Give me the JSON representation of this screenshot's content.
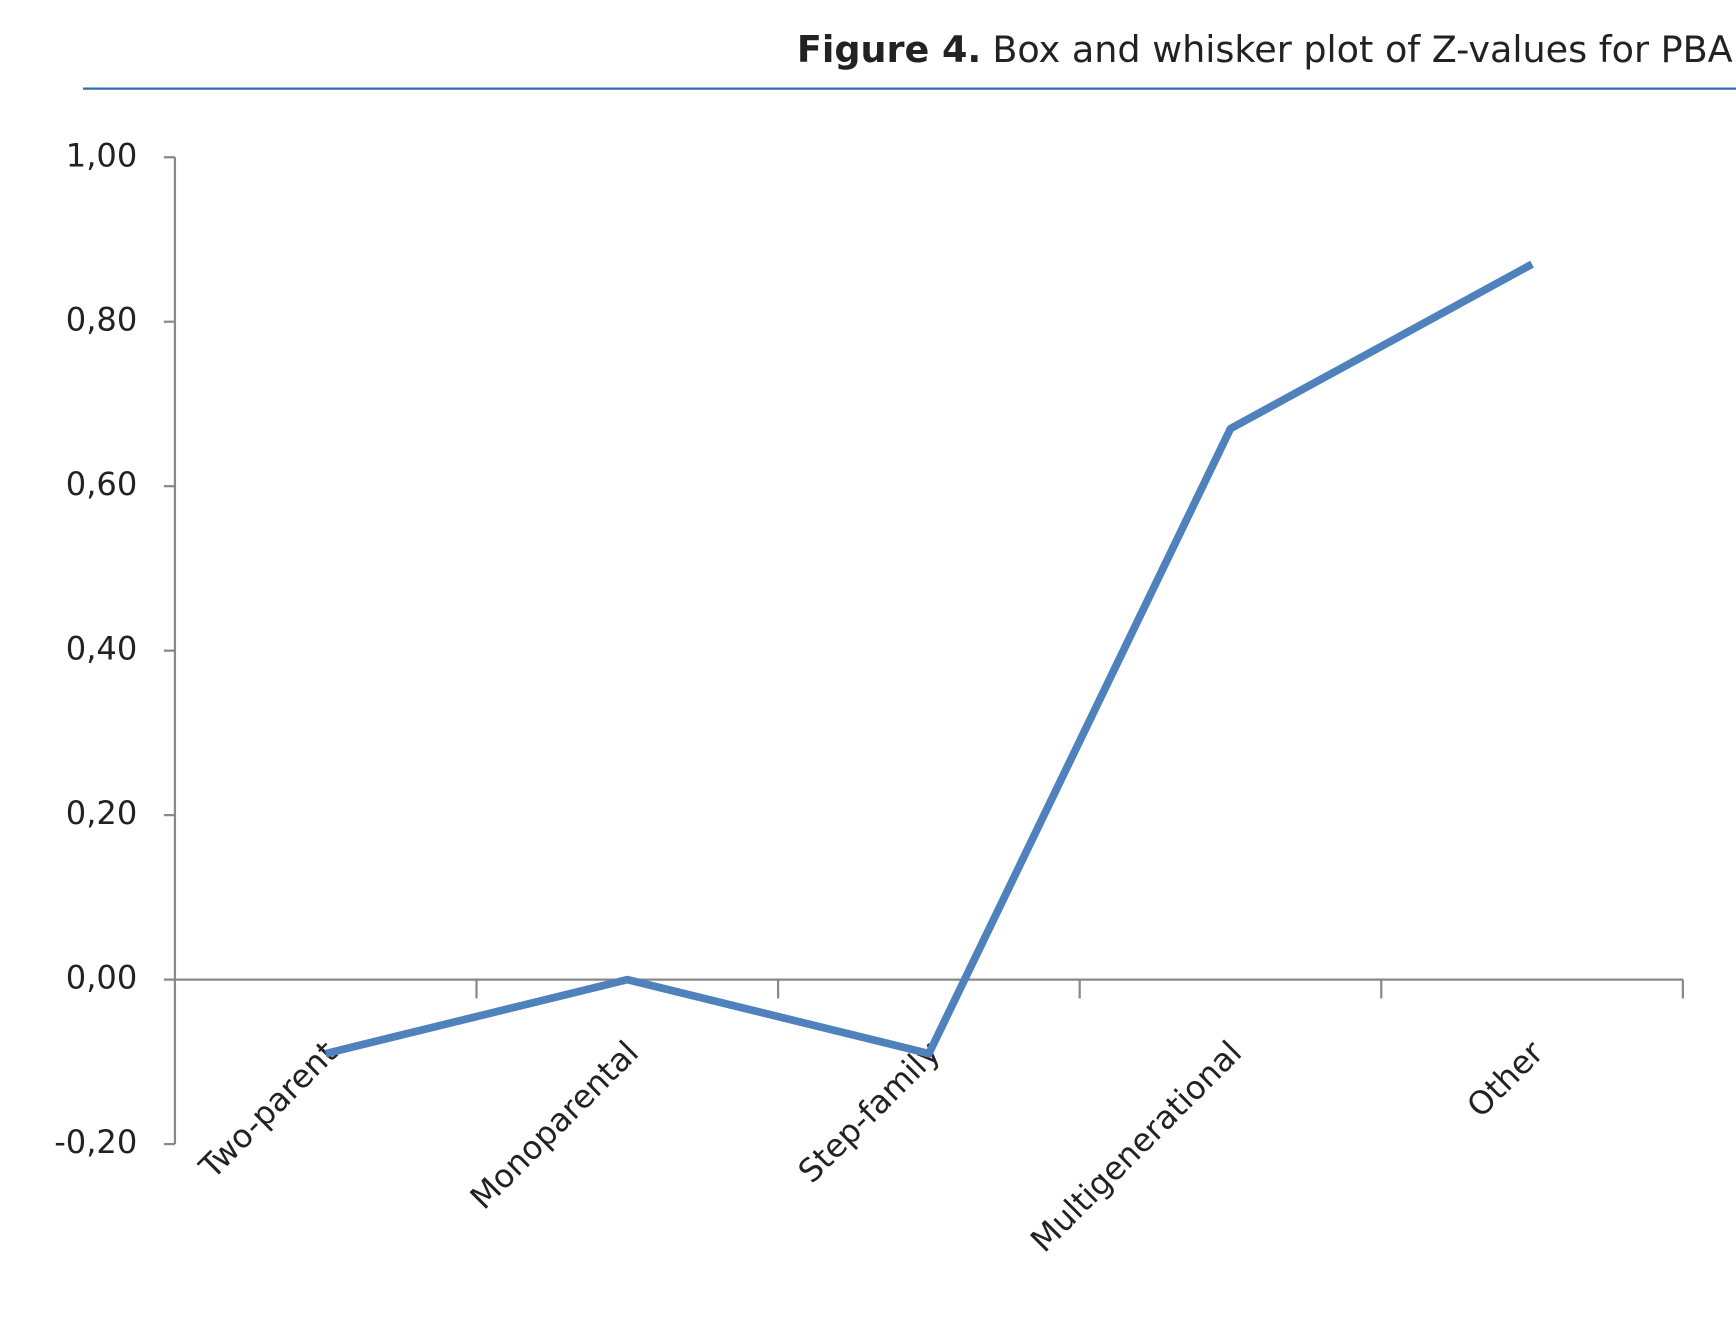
{
  "chart_data": {
    "type": "line",
    "title_label": "Figure 4.",
    "title": "Box and whisker plot of Z-values for PBA",
    "categories": [
      "Two-parent",
      "Monoparental",
      "Step-family",
      "Multigenerational",
      "Other"
    ],
    "values": [
      -0.09,
      0.0,
      -0.09,
      0.67,
      0.87
    ],
    "color": "#4f81bd",
    "ylim": [
      -0.2,
      1.0
    ],
    "yticks": [
      {
        "value": -0.2,
        "label": "-0,20"
      },
      {
        "value": 0,
        "label": "0,00"
      },
      {
        "value": 0.2,
        "label": "0,20"
      },
      {
        "value": 0.4,
        "label": "0,40"
      },
      {
        "value": 0.6,
        "label": "0,60"
      },
      {
        "value": 0.8,
        "label": "0,80"
      },
      {
        "value": 1.0,
        "label": "1,00"
      }
    ],
    "grid": false
  }
}
